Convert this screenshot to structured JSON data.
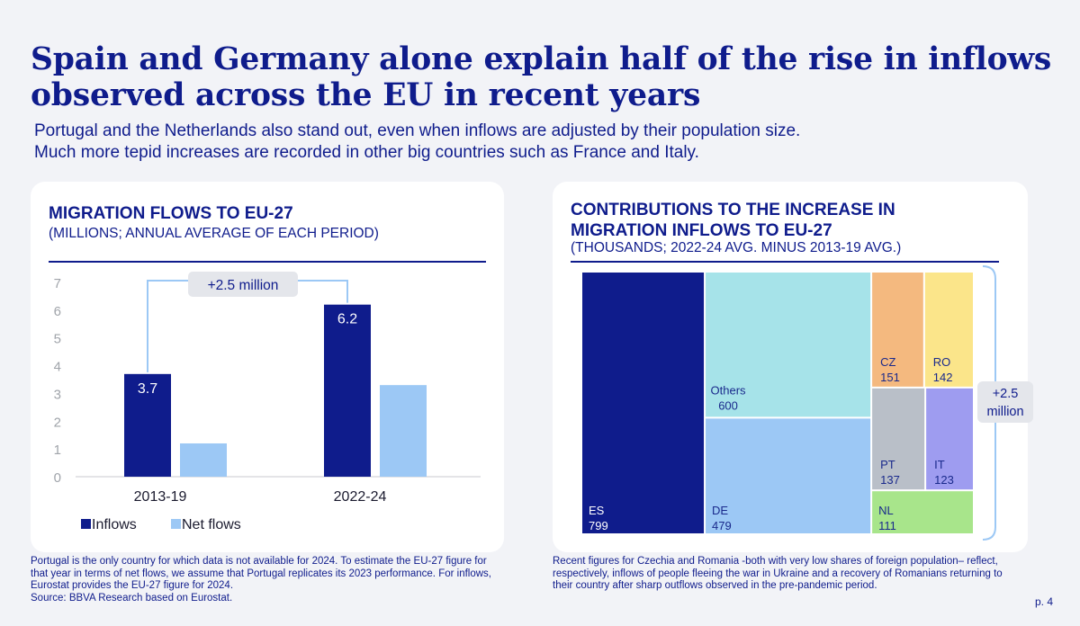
{
  "title": "Spain and Germany alone explain half of the rise in inflows observed across the EU in recent years",
  "subtitle_lines": [
    "Portugal and the Netherlands also stand out, even when inflows are adjusted by their population size.",
    "Much more tepid increases are recorded in other big countries such as France and Italy."
  ],
  "left_chart": {
    "title": "MIGRATION FLOWS TO EU-27",
    "subtitle": "(MILLIONS; ANNUAL AVERAGE OF EACH PERIOD)",
    "annotation": "+2.5 million"
  },
  "right_chart": {
    "title_lines": [
      "CONTRIBUTIONS TO THE INCREASE IN",
      "MIGRATION INFLOWS TO EU-27"
    ],
    "subtitle": "(THOUSANDS; 2022-24 AVG. MINUS 2013-19 AVG.)",
    "annotation_lines": [
      "+2.5",
      "million"
    ]
  },
  "chart_data": [
    {
      "type": "bar",
      "title": "MIGRATION FLOWS TO EU-27",
      "subtitle": "(MILLIONS; ANNUAL AVERAGE OF EACH PERIOD)",
      "categories": [
        "2013-19",
        "2022-24"
      ],
      "series": [
        {
          "name": "Inflows",
          "values": [
            3.7,
            6.2
          ],
          "color": "#0f1c8c",
          "labels": [
            "3.7",
            "6.2"
          ]
        },
        {
          "name": "Net flows",
          "values": [
            1.2,
            3.3
          ],
          "color": "#9cc8f5"
        }
      ],
      "ylim": [
        0,
        7
      ],
      "yticks": [
        "0",
        "1",
        "2",
        "3",
        "4",
        "5",
        "6",
        "7"
      ],
      "grid": false,
      "legend": "bottom-left"
    },
    {
      "type": "treemap",
      "title": "CONTRIBUTIONS TO THE INCREASE IN MIGRATION INFLOWS TO EU-27",
      "subtitle": "(THOUSANDS; 2022-24 AVG. MINUS 2013-19 AVG.)",
      "items": [
        {
          "label": "ES",
          "value": 799,
          "display": "799",
          "color": "#0f1c8c",
          "text_color": "#ffffff"
        },
        {
          "label": "Others",
          "value": 600,
          "display": "600",
          "color": "#a6e3e9",
          "text_color": "#1a2a8c"
        },
        {
          "label": "DE",
          "value": 479,
          "display": "479",
          "color": "#9cc8f5",
          "text_color": "#1a2a8c"
        },
        {
          "label": "CZ",
          "value": 151,
          "display": "151",
          "color": "#f4b97f",
          "text_color": "#1a2a8c"
        },
        {
          "label": "RO",
          "value": 142,
          "display": "142",
          "color": "#fbe58a",
          "text_color": "#1a2a8c"
        },
        {
          "label": "PT",
          "value": 137,
          "display": "137",
          "color": "#b9bfc8",
          "text_color": "#1a2a8c"
        },
        {
          "label": "IT",
          "value": 123,
          "display": "123",
          "color": "#9e9cf0",
          "text_color": "#1a2a8c"
        },
        {
          "label": "NL",
          "value": 111,
          "display": "111",
          "color": "#a8e58b",
          "text_color": "#1a2a8c"
        }
      ]
    }
  ],
  "footnote_left": [
    "Portugal is the only country for which data is not available for 2024. To estimate the EU-27 figure for",
    "that year in terms of net flows, we assume that Portugal replicates its 2023 performance. For inflows,",
    "Eurostat provides the EU-27 figure for 2024.",
    "Source: BBVA Research based on Eurostat."
  ],
  "footnote_right": [
    "Recent figures for Czechia and Romania -both with very low shares of foreign population– reflect,",
    "respectively, inflows of people fleeing the war in Ukraine and a recovery of Romanians returning to",
    "their country after sharp outflows observed in the pre-pandemic period."
  ],
  "page_number": "p. 4"
}
